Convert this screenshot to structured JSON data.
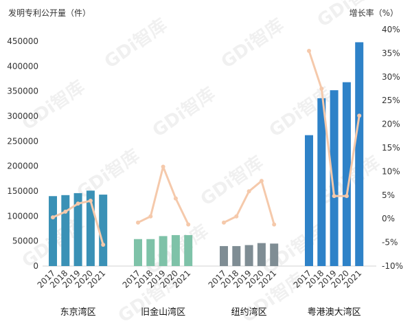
{
  "chart_data": {
    "type": "bar",
    "left_axis_title": "发明专利公开量（件）",
    "right_axis_title": "增长率（%）",
    "watermark": "GDi智库",
    "ylim": [
      0,
      450000
    ],
    "y_ticks": [
      "0",
      "50000",
      "100000",
      "150000",
      "200000",
      "250000",
      "300000",
      "350000",
      "400000",
      "450000"
    ],
    "y2lim": [
      -10,
      40
    ],
    "y2_ticks": [
      "-10%",
      "-5%",
      "0%",
      "5%",
      "10%",
      "15%",
      "20%",
      "25%",
      "30%",
      "35%",
      "40%"
    ],
    "line_color": "#f5c9ab",
    "groups": [
      {
        "name": "东京湾区",
        "color": "#3a91b6",
        "years": [
          "2017",
          "2018",
          "2019",
          "2020",
          "2021"
        ],
        "values": [
          140000,
          142000,
          146000,
          151000,
          143000
        ],
        "growth": [
          0.3,
          1.5,
          3.2,
          3.8,
          -5.5
        ]
      },
      {
        "name": "旧金山湾区",
        "color": "#7ec2a8",
        "years": [
          "2017",
          "2018",
          "2019",
          "2020",
          "2021"
        ],
        "values": [
          54000,
          54000,
          60000,
          62000,
          62000
        ],
        "growth": [
          -0.8,
          0.5,
          11,
          4.3,
          -1.2
        ]
      },
      {
        "name": "纽约湾区",
        "color": "#7f8d94",
        "years": [
          "2017",
          "2018",
          "2019",
          "2020",
          "2021"
        ],
        "values": [
          40000,
          40000,
          42000,
          46000,
          45000
        ],
        "growth": [
          -0.8,
          0.5,
          5.8,
          8,
          -1.2
        ]
      },
      {
        "name": "粤港澳大湾区",
        "color": "#2e82c8",
        "years": [
          "2017",
          "2018",
          "2019",
          "2020",
          "2021"
        ],
        "values": [
          262000,
          336000,
          352000,
          368000,
          448000
        ],
        "growth": [
          35.5,
          27.5,
          4.8,
          4.8,
          21.8
        ]
      }
    ]
  }
}
